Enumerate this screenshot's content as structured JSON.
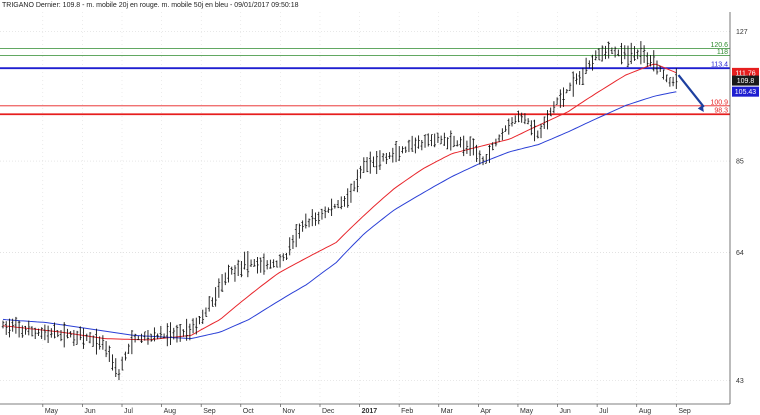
{
  "header": {
    "text": "TRIGANO Dernier: 109.8 - m. mobile 20j en rouge. m. mobile 50j en bleu - 09/01/2017 09:50:18"
  },
  "colors": {
    "background": "#ffffff",
    "grid": "#d9d9d9",
    "bars": "#111111",
    "ma20": "#e8252b",
    "ma50": "#2a3fd6",
    "blue_level": "#1f1fd1",
    "red_level": "#e61e1e",
    "green_level": "#2e8b2e",
    "arrow": "#1d3f9f"
  },
  "chart_data": {
    "type": "ohlc",
    "title": "TRIGANO Dernier: 109.8 - m. mobile 20j en rouge. m. mobile 50j en bleu - 09/01/2017 09:50:18",
    "ylim": [
      40,
      135
    ],
    "y_scale": "log",
    "y_ticks": [
      "127",
      "85",
      "64",
      "43"
    ],
    "grid": true,
    "x_months": [
      "May",
      "Jun",
      "Jul",
      "Aug",
      "Sep",
      "Oct",
      "Nov",
      "Dec",
      "2017",
      "Feb",
      "Mar",
      "Apr",
      "May",
      "Jun",
      "Jul",
      "Aug",
      "Sep"
    ],
    "last": {
      "label": "109.8",
      "value": 109.8
    },
    "levels": [
      {
        "label": "120.6",
        "value": 120.6,
        "color": "green"
      },
      {
        "label": "118",
        "value": 118,
        "color": "green"
      },
      {
        "label": "113.4",
        "value": 113.4,
        "color": "blue"
      },
      {
        "label": "100.9",
        "value": 100.9,
        "color": "red"
      },
      {
        "label": "98.3",
        "value": 98.3,
        "color": "red"
      }
    ],
    "value_boxes": [
      {
        "label": "111.76",
        "value": 111.76,
        "color": "red"
      },
      {
        "label": "109.8",
        "value": 109.8,
        "color": "dark"
      },
      {
        "label": "105.43",
        "value": 105.43,
        "color": "blue"
      }
    ],
    "price_anchors": [
      {
        "x": 0,
        "y": 51
      },
      {
        "x": 4,
        "y": 50
      },
      {
        "x": 10,
        "y": 49.5
      },
      {
        "x": 14,
        "y": 48.2
      },
      {
        "x": 16,
        "y": 44
      },
      {
        "x": 18,
        "y": 49
      },
      {
        "x": 22,
        "y": 49.5
      },
      {
        "x": 25,
        "y": 50
      },
      {
        "x": 27,
        "y": 51.5
      },
      {
        "x": 29,
        "y": 55
      },
      {
        "x": 31,
        "y": 60
      },
      {
        "x": 34,
        "y": 62
      },
      {
        "x": 37,
        "y": 61.5
      },
      {
        "x": 39,
        "y": 63
      },
      {
        "x": 41,
        "y": 69
      },
      {
        "x": 44,
        "y": 72
      },
      {
        "x": 47,
        "y": 75
      },
      {
        "x": 48.5,
        "y": 78
      },
      {
        "x": 50,
        "y": 84
      },
      {
        "x": 53,
        "y": 86
      },
      {
        "x": 57,
        "y": 89
      },
      {
        "x": 60,
        "y": 91
      },
      {
        "x": 63,
        "y": 90
      },
      {
        "x": 65,
        "y": 88
      },
      {
        "x": 66.5,
        "y": 85
      },
      {
        "x": 68,
        "y": 90
      },
      {
        "x": 70,
        "y": 96
      },
      {
        "x": 72,
        "y": 97.5
      },
      {
        "x": 74,
        "y": 92
      },
      {
        "x": 75,
        "y": 96
      },
      {
        "x": 76.5,
        "y": 102
      },
      {
        "x": 78,
        "y": 106
      },
      {
        "x": 80,
        "y": 111
      },
      {
        "x": 82,
        "y": 119
      },
      {
        "x": 84,
        "y": 120
      },
      {
        "x": 86,
        "y": 118
      },
      {
        "x": 88,
        "y": 119
      },
      {
        "x": 90,
        "y": 116
      },
      {
        "x": 92,
        "y": 109
      },
      {
        "x": 93,
        "y": 110
      }
    ],
    "ma20_anchors": [
      {
        "x": 0,
        "y": 51
      },
      {
        "x": 8,
        "y": 50
      },
      {
        "x": 14,
        "y": 49
      },
      {
        "x": 20,
        "y": 48.8
      },
      {
        "x": 26,
        "y": 49.5
      },
      {
        "x": 30,
        "y": 52
      },
      {
        "x": 34,
        "y": 56
      },
      {
        "x": 38,
        "y": 60
      },
      {
        "x": 42,
        "y": 63
      },
      {
        "x": 46,
        "y": 66
      },
      {
        "x": 50,
        "y": 72
      },
      {
        "x": 54,
        "y": 78
      },
      {
        "x": 58,
        "y": 83
      },
      {
        "x": 62,
        "y": 87
      },
      {
        "x": 66,
        "y": 89
      },
      {
        "x": 70,
        "y": 91
      },
      {
        "x": 74,
        "y": 95
      },
      {
        "x": 78,
        "y": 99
      },
      {
        "x": 82,
        "y": 105
      },
      {
        "x": 86,
        "y": 111
      },
      {
        "x": 90,
        "y": 115
      },
      {
        "x": 93,
        "y": 111.8
      }
    ],
    "ma50_anchors": [
      {
        "x": 0,
        "y": 52
      },
      {
        "x": 6,
        "y": 51.5
      },
      {
        "x": 12,
        "y": 50.5
      },
      {
        "x": 18,
        "y": 49.5
      },
      {
        "x": 26,
        "y": 49
      },
      {
        "x": 30,
        "y": 50
      },
      {
        "x": 34,
        "y": 52
      },
      {
        "x": 38,
        "y": 55
      },
      {
        "x": 42,
        "y": 58
      },
      {
        "x": 46,
        "y": 62
      },
      {
        "x": 50,
        "y": 68
      },
      {
        "x": 54,
        "y": 73
      },
      {
        "x": 58,
        "y": 77
      },
      {
        "x": 62,
        "y": 81
      },
      {
        "x": 66,
        "y": 84.5
      },
      {
        "x": 70,
        "y": 87.5
      },
      {
        "x": 74,
        "y": 89.5
      },
      {
        "x": 78,
        "y": 93
      },
      {
        "x": 82,
        "y": 97
      },
      {
        "x": 86,
        "y": 101
      },
      {
        "x": 90,
        "y": 104
      },
      {
        "x": 93,
        "y": 105.43
      }
    ],
    "x_max": 100,
    "forecast": {
      "from_value": 111,
      "to_value": 99
    }
  }
}
